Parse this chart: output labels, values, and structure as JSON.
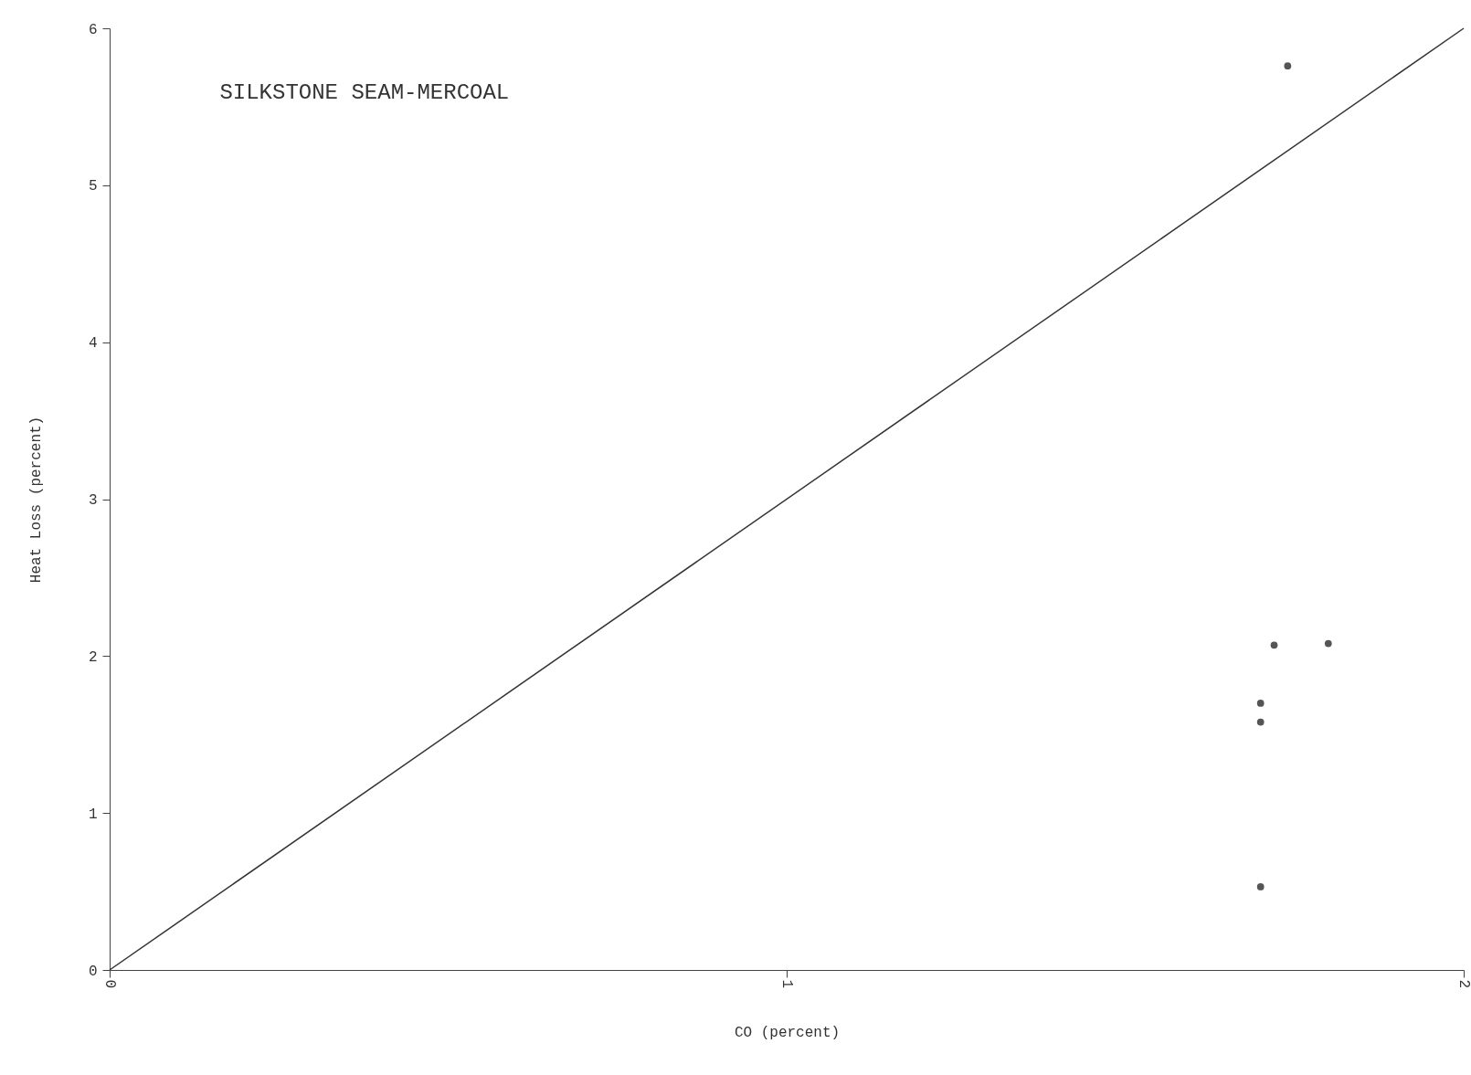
{
  "chart_data": {
    "type": "scatter",
    "title": "SILKSTONE SEAM-MERCOAL",
    "xlabel": "CO (percent)",
    "ylabel": "Heat Loss (percent)",
    "xlim": [
      0,
      2
    ],
    "ylim": [
      0,
      6
    ],
    "xticks": [
      0,
      1,
      2
    ],
    "yticks": [
      0,
      1,
      2,
      3,
      4,
      5,
      6
    ],
    "series": [
      {
        "marker": "circle",
        "color": "#555555",
        "x": [
          1.72,
          1.8,
          1.7,
          1.7,
          1.7,
          1.74
        ],
        "values": [
          2.07,
          2.08,
          1.7,
          1.58,
          0.53,
          5.76
        ]
      },
      {
        "type": "line",
        "color": "#333333",
        "x": [
          0,
          2
        ],
        "values": [
          0,
          6
        ]
      }
    ]
  }
}
